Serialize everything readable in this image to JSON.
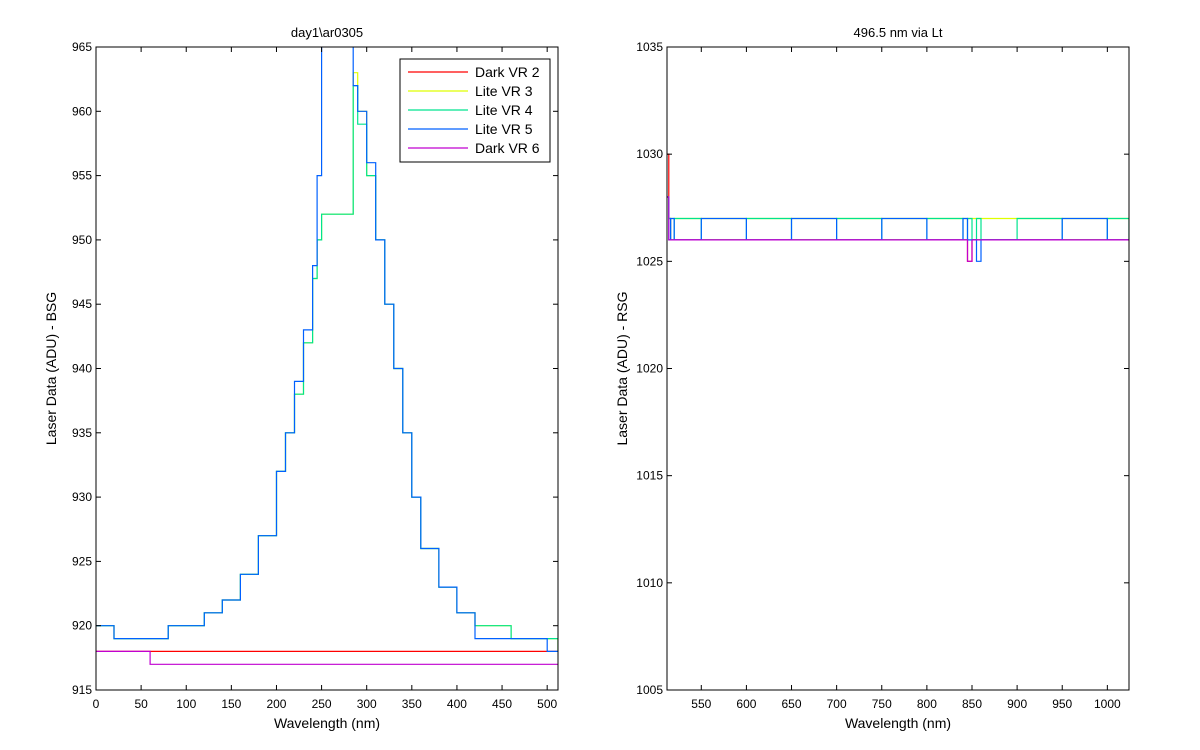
{
  "chart_data": [
    {
      "type": "line",
      "title": "day1\\ar0305",
      "xlabel": "Wavelength (nm)",
      "ylabel": "Laser Data (ADU) - BSG",
      "xlim": [
        0,
        512
      ],
      "ylim": [
        915,
        965
      ],
      "xticks": [
        0,
        50,
        100,
        150,
        200,
        250,
        300,
        350,
        400,
        450,
        500
      ],
      "yticks": [
        915,
        920,
        925,
        930,
        935,
        940,
        945,
        950,
        955,
        960,
        965
      ],
      "grid": false,
      "legend": {
        "position": "top-right"
      },
      "x": [
        0,
        20,
        40,
        60,
        80,
        100,
        120,
        140,
        160,
        180,
        200,
        210,
        220,
        230,
        240,
        245,
        250,
        285,
        290,
        300,
        310,
        320,
        330,
        340,
        350,
        360,
        380,
        400,
        420,
        440,
        460,
        480,
        500,
        512
      ],
      "series": [
        {
          "name": "Dark VR 2",
          "color": "#ff0000",
          "values": [
            918,
            918,
            918,
            918,
            918,
            918,
            918,
            918,
            918,
            918,
            918,
            918,
            918,
            918,
            918,
            918,
            918,
            918,
            918,
            918,
            918,
            918,
            918,
            918,
            918,
            918,
            918,
            918,
            918,
            918,
            918,
            918,
            918,
            918
          ]
        },
        {
          "name": "Lite VR 3",
          "color": "#dfff00",
          "values": [
            920,
            919,
            919,
            919,
            920,
            920,
            921,
            922,
            924,
            927,
            932,
            935,
            938,
            942,
            947,
            950,
            952,
            963,
            960,
            955,
            950,
            945,
            940,
            935,
            930,
            926,
            923,
            921,
            920,
            920,
            919,
            919,
            919,
            918
          ]
        },
        {
          "name": "Lite VR 4",
          "color": "#00e38f",
          "values": [
            920,
            919,
            919,
            919,
            920,
            920,
            921,
            922,
            924,
            927,
            932,
            935,
            938,
            942,
            947,
            950,
            952,
            962,
            959,
            955,
            950,
            945,
            940,
            935,
            930,
            926,
            923,
            921,
            920,
            920,
            919,
            919,
            919,
            918
          ]
        },
        {
          "name": "Lite VR 5",
          "color": "#0060ff",
          "values": [
            920,
            919,
            919,
            919,
            920,
            920,
            921,
            922,
            924,
            927,
            932,
            935,
            939,
            943,
            948,
            955,
            966,
            962,
            960,
            956,
            950,
            945,
            940,
            935,
            930,
            926,
            923,
            921,
            919,
            919,
            919,
            919,
            918,
            918
          ]
        },
        {
          "name": "Dark VR 6",
          "color": "#c000d0",
          "values": [
            918,
            918,
            918,
            917,
            917,
            917,
            917,
            917,
            917,
            917,
            917,
            917,
            917,
            917,
            917,
            917,
            917,
            917,
            917,
            917,
            917,
            917,
            917,
            917,
            917,
            917,
            917,
            917,
            917,
            917,
            917,
            917,
            917,
            917
          ]
        }
      ]
    },
    {
      "type": "line",
      "title": "496.5 nm via Lt",
      "xlabel": "Wavelength (nm)",
      "ylabel": "Laser Data (ADU) - RSG",
      "xlim": [
        512,
        1024
      ],
      "ylim": [
        1005,
        1035
      ],
      "xticks": [
        550,
        600,
        650,
        700,
        750,
        800,
        850,
        900,
        950,
        1000
      ],
      "yticks": [
        1005,
        1010,
        1015,
        1020,
        1025,
        1030,
        1035
      ],
      "grid": false,
      "x": [
        512,
        514,
        516,
        520,
        550,
        600,
        650,
        700,
        750,
        800,
        840,
        845,
        850,
        855,
        860,
        900,
        950,
        1000,
        1024
      ],
      "series": [
        {
          "name": "Dark VR 2",
          "color": "#ff0000",
          "values": [
            1030,
            1027,
            1026,
            1026,
            1026,
            1026,
            1026,
            1026,
            1026,
            1026,
            1026,
            1025,
            1026,
            1026,
            1026,
            1026,
            1026,
            1026,
            1026
          ]
        },
        {
          "name": "Lite VR 3",
          "color": "#dfff00",
          "values": [
            1028,
            1027,
            1027,
            1027,
            1027,
            1027,
            1027,
            1027,
            1027,
            1027,
            1027,
            1027,
            1027,
            1027,
            1027,
            1027,
            1027,
            1027,
            1027
          ]
        },
        {
          "name": "Lite VR 4",
          "color": "#00e38f",
          "values": [
            1028,
            1027,
            1026,
            1027,
            1026,
            1027,
            1026,
            1027,
            1026,
            1027,
            1026,
            1027,
            1026,
            1027,
            1026,
            1027,
            1026,
            1027,
            1026
          ]
        },
        {
          "name": "Lite VR 5",
          "color": "#0060ff",
          "values": [
            1028,
            1026,
            1027,
            1026,
            1027,
            1026,
            1027,
            1026,
            1027,
            1026,
            1027,
            1026,
            1026,
            1025,
            1026,
            1026,
            1027,
            1026,
            1026
          ]
        },
        {
          "name": "Dark VR 6",
          "color": "#c000d0",
          "values": [
            1028,
            1026,
            1026,
            1026,
            1026,
            1026,
            1026,
            1026,
            1026,
            1026,
            1026,
            1025,
            1026,
            1026,
            1026,
            1026,
            1026,
            1026,
            1026
          ]
        }
      ]
    }
  ]
}
